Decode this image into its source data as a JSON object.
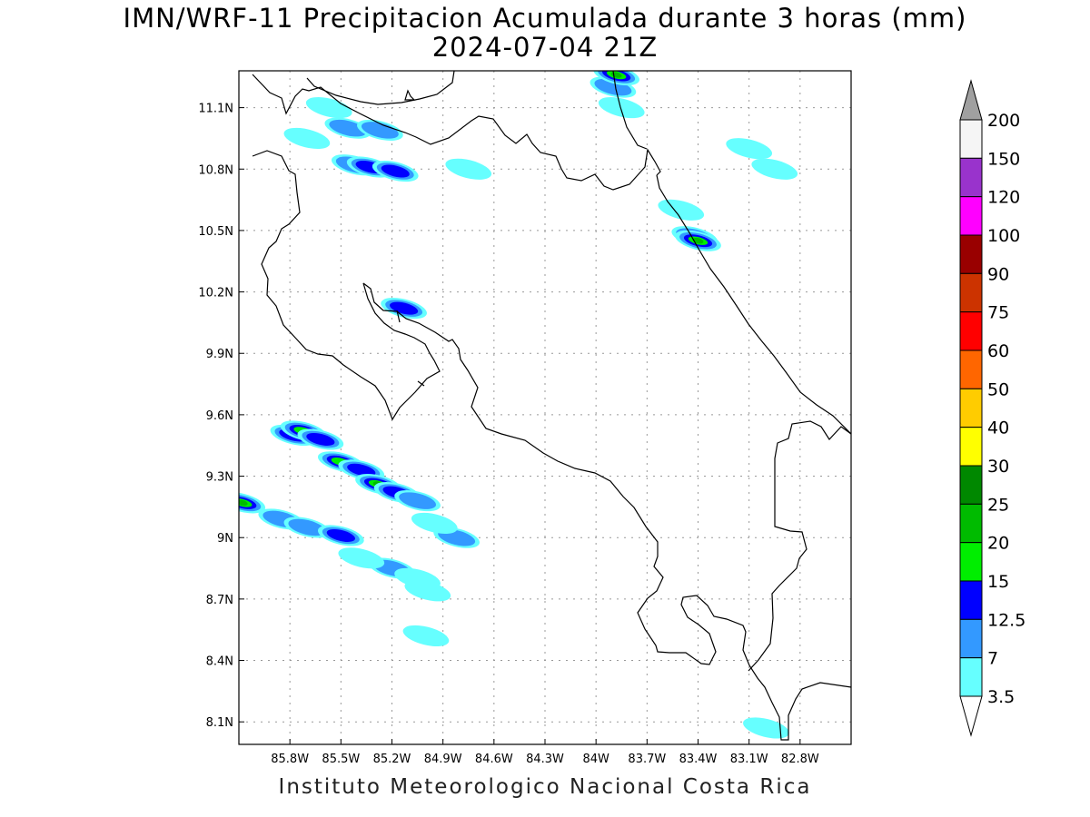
{
  "title": {
    "line1": "IMN/WRF-11 Precipitacion Acumulada durante 3 horas (mm)",
    "line2": "2024-07-04 21Z"
  },
  "footer": "Instituto Meteorologico Nacional Costa Rica",
  "map": {
    "lon_range": [
      -86.1,
      -82.5
    ],
    "lat_range": [
      7.99,
      11.28
    ],
    "x_ticks": [
      {
        "lon": -85.8,
        "label": "85.8W"
      },
      {
        "lon": -85.5,
        "label": "85.5W"
      },
      {
        "lon": -85.2,
        "label": "85.2W"
      },
      {
        "lon": -84.9,
        "label": "84.9W"
      },
      {
        "lon": -84.6,
        "label": "84.6W"
      },
      {
        "lon": -84.3,
        "label": "84.3W"
      },
      {
        "lon": -84.0,
        "label": "84W"
      },
      {
        "lon": -83.7,
        "label": "83.7W"
      },
      {
        "lon": -83.4,
        "label": "83.4W"
      },
      {
        "lon": -83.1,
        "label": "83.1W"
      },
      {
        "lon": -82.8,
        "label": "82.8W"
      }
    ],
    "y_ticks": [
      {
        "lat": 11.1,
        "label": "11.1N"
      },
      {
        "lat": 10.8,
        "label": "10.8N"
      },
      {
        "lat": 10.5,
        "label": "10.5N"
      },
      {
        "lat": 10.2,
        "label": "10.2N"
      },
      {
        "lat": 9.9,
        "label": "9.9N"
      },
      {
        "lat": 9.6,
        "label": "9.6N"
      },
      {
        "lat": 9.3,
        "label": "9.3N"
      },
      {
        "lat": 9.0,
        "label": "9N"
      },
      {
        "lat": 8.7,
        "label": "8.7N"
      },
      {
        "lat": 8.4,
        "label": "8.4N"
      },
      {
        "lat": 8.1,
        "label": "8.1N"
      }
    ],
    "grid": true,
    "precip_cells": [
      {
        "lon": -85.57,
        "lat": 11.1,
        "level": 0
      },
      {
        "lon": -85.46,
        "lat": 11.0,
        "level": 1
      },
      {
        "lon": -85.27,
        "lat": 10.99,
        "level": 1
      },
      {
        "lon": -85.42,
        "lat": 10.82,
        "level": 1
      },
      {
        "lon": -85.33,
        "lat": 10.81,
        "level": 2
      },
      {
        "lon": -85.18,
        "lat": 10.79,
        "level": 2
      },
      {
        "lon": -85.7,
        "lat": 10.95,
        "level": 0
      },
      {
        "lon": -84.75,
        "lat": 10.8,
        "level": 0
      },
      {
        "lon": -83.9,
        "lat": 11.2,
        "level": 1
      },
      {
        "lon": -83.88,
        "lat": 11.26,
        "level": 4
      },
      {
        "lon": -83.85,
        "lat": 11.1,
        "level": 0
      },
      {
        "lon": -83.42,
        "lat": 10.47,
        "level": 2
      },
      {
        "lon": -83.4,
        "lat": 10.45,
        "level": 4
      },
      {
        "lon": -83.5,
        "lat": 10.6,
        "level": 0
      },
      {
        "lon": -83.1,
        "lat": 10.9,
        "level": 0
      },
      {
        "lon": -82.95,
        "lat": 10.8,
        "level": 0
      },
      {
        "lon": -85.13,
        "lat": 10.12,
        "level": 2
      },
      {
        "lon": -85.78,
        "lat": 9.5,
        "level": 2
      },
      {
        "lon": -85.72,
        "lat": 9.52,
        "level": 3
      },
      {
        "lon": -85.62,
        "lat": 9.48,
        "level": 2
      },
      {
        "lon": -85.5,
        "lat": 9.37,
        "level": 3
      },
      {
        "lon": -85.38,
        "lat": 9.33,
        "level": 2
      },
      {
        "lon": -85.28,
        "lat": 9.26,
        "level": 4
      },
      {
        "lon": -85.17,
        "lat": 9.22,
        "level": 2
      },
      {
        "lon": -85.05,
        "lat": 9.18,
        "level": 1
      },
      {
        "lon": -86.08,
        "lat": 9.17,
        "level": 4
      },
      {
        "lon": -85.85,
        "lat": 9.09,
        "level": 1
      },
      {
        "lon": -85.7,
        "lat": 9.05,
        "level": 1
      },
      {
        "lon": -85.5,
        "lat": 9.01,
        "level": 2
      },
      {
        "lon": -84.82,
        "lat": 9.0,
        "level": 1
      },
      {
        "lon": -84.95,
        "lat": 9.07,
        "level": 0
      },
      {
        "lon": -85.2,
        "lat": 8.85,
        "level": 1
      },
      {
        "lon": -85.05,
        "lat": 8.8,
        "level": 0
      },
      {
        "lon": -84.99,
        "lat": 8.74,
        "level": 0
      },
      {
        "lon": -85.0,
        "lat": 8.52,
        "level": 0
      },
      {
        "lon": -85.38,
        "lat": 8.9,
        "level": 0
      },
      {
        "lon": -83.0,
        "lat": 8.07,
        "level": 0
      }
    ]
  },
  "colorbar": {
    "levels": [
      {
        "label": "200",
        "color": "#a0a0a0"
      },
      {
        "label": "150",
        "color": "#f5f5f5"
      },
      {
        "label": "120",
        "color": "#9933cc"
      },
      {
        "label": "100",
        "color": "#ff00ff"
      },
      {
        "label": "90",
        "color": "#990000"
      },
      {
        "label": "75",
        "color": "#cc3300"
      },
      {
        "label": "60",
        "color": "#ff0000"
      },
      {
        "label": "50",
        "color": "#ff6600"
      },
      {
        "label": "40",
        "color": "#ffcc00"
      },
      {
        "label": "30",
        "color": "#ffff00"
      },
      {
        "label": "25",
        "color": "#008800"
      },
      {
        "label": "20",
        "color": "#00bb00"
      },
      {
        "label": "15",
        "color": "#00ee00"
      },
      {
        "label": "12.5",
        "color": "#0000ff"
      },
      {
        "label": "7",
        "color": "#3399ff"
      },
      {
        "label": "3.5",
        "color": "#66ffff"
      }
    ]
  }
}
